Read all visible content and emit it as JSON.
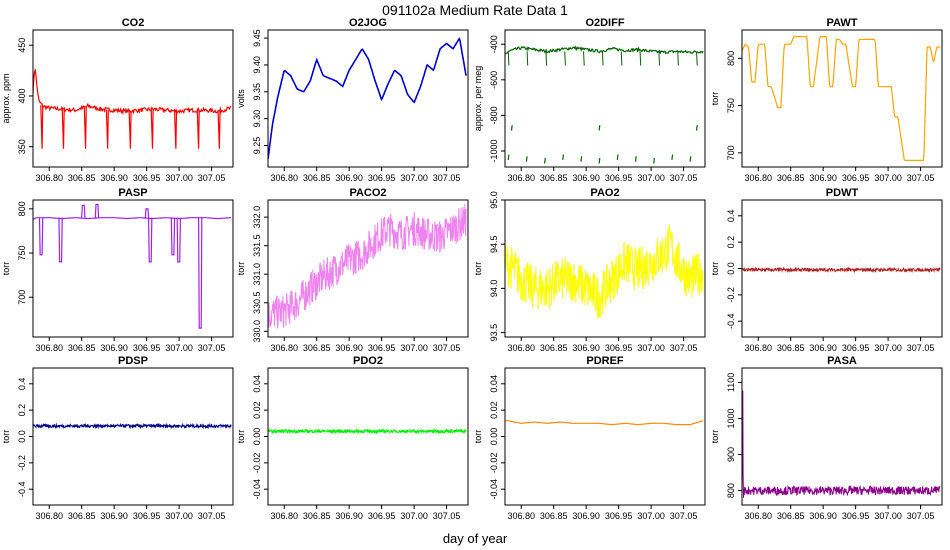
{
  "page": {
    "title": "091102a   Medium Rate Data 1",
    "xlabel": "day of year"
  },
  "chart_data": [
    {
      "type": "line",
      "title": "CO2",
      "ylabel": "approx. ppm",
      "color": "#ff0000",
      "xlim": [
        306.775,
        307.083
      ],
      "ylim": [
        330,
        465
      ],
      "x_ticks": [
        306.8,
        306.85,
        306.9,
        306.95,
        307.0,
        307.05
      ],
      "x_tick_labels": [
        "306.80",
        "306.85",
        "306.90",
        "306.95",
        "307.00",
        "307.05"
      ],
      "y_ticks": [
        350,
        400,
        450
      ],
      "y_tick_labels": [
        "350",
        "400",
        "450"
      ],
      "series": [
        {
          "x": [
            306.775,
            306.778,
            306.781,
            306.784,
            306.79,
            306.8,
            306.82,
            306.84,
            306.86,
            306.88,
            306.9,
            306.92,
            306.94,
            306.96,
            306.98,
            307.0,
            307.02,
            307.04,
            307.06,
            307.08
          ],
          "y": [
            405,
            430,
            410,
            395,
            390,
            388,
            387,
            386,
            390,
            387,
            386,
            385,
            386,
            387,
            386,
            385,
            386,
            386,
            385,
            388
          ]
        }
      ],
      "features": {
        "spikes_to": 348,
        "spike_x": [
          306.789,
          306.822,
          306.856,
          306.89,
          306.925,
          306.959,
          306.995,
          307.03,
          307.062
        ]
      }
    },
    {
      "type": "line",
      "title": "O2JOG",
      "ylabel": "volts",
      "color": "#0000cd",
      "xlim": [
        306.775,
        307.083
      ],
      "ylim": [
        9.21,
        9.465
      ],
      "x_ticks": [
        306.8,
        306.85,
        306.9,
        306.95,
        307.0,
        307.05
      ],
      "x_tick_labels": [
        "306.80",
        "306.85",
        "306.90",
        "306.95",
        "307.00",
        "307.05"
      ],
      "y_ticks": [
        9.25,
        9.3,
        9.35,
        9.4,
        9.45
      ],
      "y_tick_labels": [
        "9.25",
        "9.30",
        "9.35",
        "9.40",
        "9.45"
      ],
      "series": [
        {
          "x": [
            306.775,
            306.782,
            306.79,
            306.8,
            306.81,
            306.82,
            306.83,
            306.84,
            306.85,
            306.86,
            306.87,
            306.88,
            306.89,
            306.9,
            306.91,
            306.92,
            306.93,
            306.94,
            306.95,
            306.96,
            306.97,
            306.98,
            306.99,
            307.0,
            307.01,
            307.02,
            307.03,
            307.04,
            307.05,
            307.06,
            307.07,
            307.08
          ],
          "y": [
            9.225,
            9.29,
            9.34,
            9.39,
            9.38,
            9.355,
            9.35,
            9.37,
            9.41,
            9.38,
            9.375,
            9.37,
            9.36,
            9.39,
            9.41,
            9.43,
            9.41,
            9.37,
            9.335,
            9.365,
            9.39,
            9.38,
            9.345,
            9.33,
            9.36,
            9.4,
            9.39,
            9.43,
            9.44,
            9.43,
            9.45,
            9.38
          ]
        }
      ]
    },
    {
      "type": "line",
      "title": "O2DIFF",
      "ylabel": "approx. per meg",
      "color": "#006400",
      "xlim": [
        306.775,
        307.083
      ],
      "ylim": [
        -1090,
        -320
      ],
      "x_ticks": [
        306.8,
        306.85,
        306.9,
        306.95,
        307.0,
        307.05
      ],
      "x_tick_labels": [
        "306.80",
        "306.85",
        "306.90",
        "306.95",
        "307.00",
        "307.05"
      ],
      "y_ticks": [
        -1000,
        -800,
        -600,
        -400
      ],
      "y_tick_labels": [
        "-1000",
        "-800",
        "-600",
        "-400"
      ],
      "series": [
        {
          "x": [
            306.775,
            306.78,
            306.79,
            306.8,
            306.82,
            306.84,
            306.86,
            306.88,
            306.9,
            306.92,
            306.94,
            306.96,
            306.98,
            307.0,
            307.02,
            307.04,
            307.06,
            307.08
          ],
          "y": [
            -460,
            -440,
            -430,
            -420,
            -430,
            -440,
            -430,
            -420,
            -430,
            -440,
            -425,
            -435,
            -430,
            -440,
            -445,
            -440,
            -445,
            -440
          ]
        }
      ],
      "features": {
        "low_dash_y": [
          -1030,
          -1040,
          -1050
        ],
        "mid_dash_y": -870
      }
    },
    {
      "type": "line",
      "title": "PAWT",
      "ylabel": "torr",
      "color": "#ffa500",
      "xlim": [
        306.775,
        307.083
      ],
      "ylim": [
        685,
        830
      ],
      "x_ticks": [
        306.8,
        306.85,
        306.9,
        306.95,
        307.0,
        307.05
      ],
      "x_tick_labels": [
        "306.80",
        "306.85",
        "306.90",
        "306.95",
        "307.00",
        "307.05"
      ],
      "y_ticks": [
        700,
        750,
        800
      ],
      "y_tick_labels": [
        "700",
        "750",
        "800"
      ],
      "series": [
        {
          "x": [
            306.775,
            306.78,
            306.785,
            306.79,
            306.795,
            306.8,
            306.81,
            306.815,
            306.82,
            306.83,
            306.835,
            306.84,
            306.85,
            306.855,
            306.86,
            306.865,
            306.875,
            306.88,
            306.885,
            306.895,
            306.9,
            306.905,
            306.91,
            306.915,
            306.92,
            306.925,
            306.93,
            306.935,
            306.945,
            306.95,
            306.955,
            306.96,
            306.965,
            306.975,
            306.98,
            306.985,
            306.99,
            307.0,
            307.005,
            307.01,
            307.015,
            307.025,
            307.03,
            307.035,
            307.04,
            307.045,
            307.055,
            307.06,
            307.065,
            307.07,
            307.075,
            307.08
          ],
          "y": [
            808,
            815,
            812,
            775,
            775,
            815,
            815,
            770,
            770,
            748,
            748,
            815,
            815,
            823,
            823,
            823,
            823,
            770,
            770,
            823,
            823,
            823,
            770,
            770,
            820,
            820,
            815,
            815,
            770,
            770,
            820,
            820,
            820,
            820,
            820,
            770,
            770,
            770,
            770,
            738,
            738,
            692,
            692,
            692,
            692,
            692,
            692,
            812,
            812,
            795,
            812,
            812
          ]
        }
      ]
    },
    {
      "type": "line",
      "title": "PASP",
      "ylabel": "torr",
      "color": "#a020f0",
      "xlim": [
        306.775,
        307.083
      ],
      "ylim": [
        655,
        810
      ],
      "x_ticks": [
        306.8,
        306.85,
        306.9,
        306.95,
        307.0,
        307.05
      ],
      "x_tick_labels": [
        "306.80",
        "306.85",
        "306.90",
        "306.95",
        "307.00",
        "307.05"
      ],
      "y_ticks": [
        700,
        750,
        800
      ],
      "y_tick_labels": [
        "700",
        "750",
        "800"
      ],
      "series": [
        {
          "x": [
            306.775,
            306.78,
            306.79,
            306.8,
            306.82,
            306.84,
            306.86,
            306.88,
            306.9,
            306.92,
            306.94,
            306.96,
            306.98,
            307.0,
            307.02,
            307.04,
            307.06,
            307.08
          ],
          "y": [
            788,
            790,
            790,
            790,
            789,
            790,
            789,
            790,
            790,
            789,
            790,
            789,
            790,
            789,
            790,
            790,
            789,
            790
          ]
        }
      ],
      "features": {
        "dips": [
          [
            306.788,
            748
          ],
          [
            306.818,
            740
          ],
          [
            306.956,
            740
          ],
          [
            306.991,
            748
          ],
          [
            307.0,
            740
          ],
          [
            307.033,
            665
          ]
        ],
        "bumps": [
          [
            306.852,
            804
          ],
          [
            306.873,
            805
          ],
          [
            306.95,
            800
          ]
        ]
      }
    },
    {
      "type": "line",
      "title": "PACO2",
      "ylabel": "torr",
      "color": "#ee82ee",
      "xlim": [
        306.775,
        307.083
      ],
      "ylim": [
        329.9,
        332.3
      ],
      "x_ticks": [
        306.8,
        306.85,
        306.9,
        306.95,
        307.0,
        307.05
      ],
      "x_tick_labels": [
        "306.80",
        "306.85",
        "306.90",
        "306.95",
        "307.00",
        "307.05"
      ],
      "y_ticks": [
        330.0,
        330.5,
        331.0,
        331.5,
        332.0
      ],
      "y_tick_labels": [
        "330.0",
        "330.5",
        "331.0",
        "331.5",
        "332.0"
      ],
      "series": [
        {
          "x": [
            306.775,
            306.8,
            306.82,
            306.84,
            306.86,
            306.88,
            306.9,
            306.92,
            306.94,
            306.96,
            306.98,
            307.0,
            307.02,
            307.04,
            307.06,
            307.08
          ],
          "y": [
            330.3,
            330.35,
            330.5,
            330.75,
            330.95,
            331.1,
            331.25,
            331.35,
            331.6,
            331.8,
            331.7,
            331.8,
            331.7,
            331.65,
            331.8,
            331.95
          ],
          "band": 0.3
        }
      ]
    },
    {
      "type": "line",
      "title": "PAO2",
      "ylabel": "torr",
      "color": "#ffff00",
      "xlim": [
        306.775,
        307.083
      ],
      "ylim": [
        93.45,
        95.0
      ],
      "x_ticks": [
        306.8,
        306.85,
        306.9,
        306.95,
        307.0,
        307.05
      ],
      "x_tick_labels": [
        "306.80",
        "306.85",
        "306.90",
        "306.95",
        "307.00",
        "307.05"
      ],
      "y_ticks": [
        93.5,
        94.0,
        94.5,
        95.0
      ],
      "y_tick_labels": [
        "93.5",
        "94.0",
        "94.5",
        "95.0"
      ],
      "series": [
        {
          "x": [
            306.775,
            306.79,
            306.8,
            306.82,
            306.84,
            306.86,
            306.88,
            306.9,
            306.92,
            306.94,
            306.96,
            306.98,
            307.0,
            307.02,
            307.03,
            307.04,
            307.06,
            307.08
          ],
          "y": [
            94.3,
            94.2,
            94.1,
            94.0,
            94.0,
            94.1,
            94.1,
            94.0,
            93.9,
            94.1,
            94.3,
            94.2,
            94.3,
            94.4,
            94.5,
            94.3,
            94.1,
            94.2
          ],
          "band": 0.25
        }
      ]
    },
    {
      "type": "line",
      "title": "PDWT",
      "ylabel": "torr",
      "color": "#b22222",
      "xlim": [
        306.775,
        307.083
      ],
      "ylim": [
        -0.52,
        0.52
      ],
      "x_ticks": [
        306.8,
        306.85,
        306.9,
        306.95,
        307.0,
        307.05
      ],
      "x_tick_labels": [
        "306.80",
        "306.85",
        "306.90",
        "306.95",
        "307.00",
        "307.05"
      ],
      "y_ticks": [
        -0.4,
        -0.2,
        0.0,
        0.2,
        0.4
      ],
      "y_tick_labels": [
        "-0.4",
        "-0.2",
        "0.0",
        "0.2",
        "0.4"
      ],
      "series": [
        {
          "x": [
            306.775,
            307.08
          ],
          "y": [
            -0.01,
            -0.01
          ],
          "band": 0.012
        }
      ]
    },
    {
      "type": "line",
      "title": "PDSP",
      "ylabel": "torr",
      "color": "#00008b",
      "xlim": [
        306.775,
        307.083
      ],
      "ylim": [
        -0.52,
        0.52
      ],
      "x_ticks": [
        306.8,
        306.85,
        306.9,
        306.95,
        307.0,
        307.05
      ],
      "x_tick_labels": [
        "306.80",
        "306.85",
        "306.90",
        "306.95",
        "307.00",
        "307.05"
      ],
      "y_ticks": [
        -0.4,
        -0.2,
        0.0,
        0.2,
        0.4
      ],
      "y_tick_labels": [
        "-0.4",
        "-0.2",
        "0.0",
        "0.2",
        "0.4"
      ],
      "series": [
        {
          "x": [
            306.775,
            307.08
          ],
          "y": [
            0.08,
            0.08
          ],
          "band": 0.012
        }
      ]
    },
    {
      "type": "line",
      "title": "PDO2",
      "ylabel": "torr",
      "color": "#00ee00",
      "xlim": [
        306.775,
        307.083
      ],
      "ylim": [
        -0.052,
        0.052
      ],
      "x_ticks": [
        306.8,
        306.85,
        306.9,
        306.95,
        307.0,
        307.05
      ],
      "x_tick_labels": [
        "306.80",
        "306.85",
        "306.90",
        "306.95",
        "307.00",
        "307.05"
      ],
      "y_ticks": [
        -0.04,
        -0.02,
        0.0,
        0.02,
        0.04
      ],
      "y_tick_labels": [
        "-0.04",
        "-0.02",
        "0.00",
        "0.02",
        "0.04"
      ],
      "series": [
        {
          "x": [
            306.775,
            307.08
          ],
          "y": [
            0.004,
            0.004
          ],
          "band": 0.0012
        }
      ]
    },
    {
      "type": "line",
      "title": "PDREF",
      "ylabel": "torr",
      "color": "#ff8c00",
      "xlim": [
        306.775,
        307.083
      ],
      "ylim": [
        -0.052,
        0.052
      ],
      "x_ticks": [
        306.8,
        306.85,
        306.9,
        306.95,
        307.0,
        307.05
      ],
      "x_tick_labels": [
        "306.80",
        "306.85",
        "306.90",
        "306.95",
        "307.00",
        "307.05"
      ],
      "y_ticks": [
        -0.04,
        -0.02,
        0.0,
        0.02,
        0.04
      ],
      "y_tick_labels": [
        "-0.04",
        "-0.02",
        "0.00",
        "0.02",
        "0.04"
      ],
      "series": [
        {
          "x": [
            306.775,
            306.78,
            306.8,
            306.82,
            306.84,
            306.86,
            306.88,
            306.9,
            306.92,
            306.94,
            306.96,
            306.98,
            307.0,
            307.02,
            307.04,
            307.06,
            307.08
          ],
          "y": [
            0.012,
            0.012,
            0.01,
            0.011,
            0.01,
            0.011,
            0.01,
            0.01,
            0.01,
            0.009,
            0.01,
            0.009,
            0.01,
            0.01,
            0.009,
            0.009,
            0.012
          ]
        }
      ]
    },
    {
      "type": "line",
      "title": "PASA",
      "ylabel": "torr",
      "color": "#8b008b",
      "xlim": [
        306.775,
        307.083
      ],
      "ylim": [
        760,
        1140
      ],
      "x_ticks": [
        306.8,
        306.85,
        306.9,
        306.95,
        307.0,
        307.05
      ],
      "x_tick_labels": [
        "306.80",
        "306.85",
        "306.90",
        "306.95",
        "307.00",
        "307.05"
      ],
      "y_ticks": [
        800,
        900,
        1000,
        1100
      ],
      "y_tick_labels": [
        "800",
        "900",
        "1000",
        "1100"
      ],
      "series": [
        {
          "x": [
            306.775,
            306.776,
            306.777,
            306.778,
            306.78,
            307.08
          ],
          "y": [
            800,
            1130,
            770,
            800,
            800,
            800
          ],
          "band": 12
        }
      ]
    }
  ]
}
